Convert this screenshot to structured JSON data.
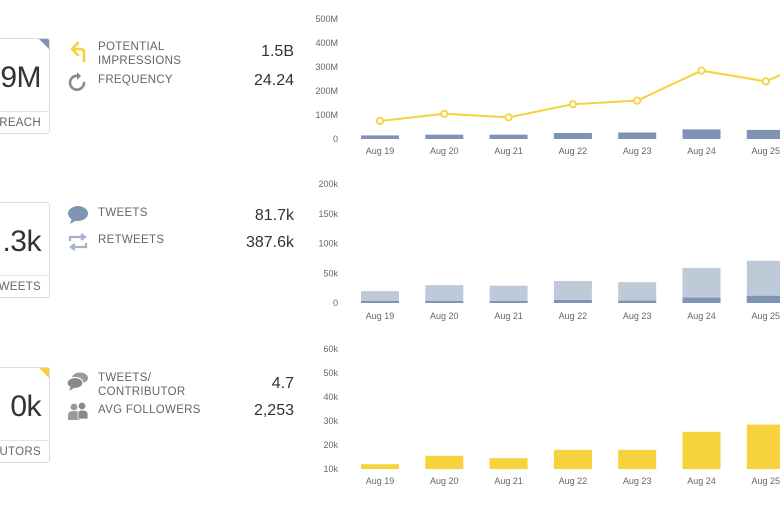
{
  "sections": [
    {
      "card": {
        "value": "9M",
        "caption": "REACH"
      },
      "metrics": [
        {
          "icon": "share-arrows-icon",
          "label": "POTENTIAL\nIMPRESSIONS",
          "value": "1.5B"
        },
        {
          "icon": "refresh-icon",
          "label": "FREQUENCY",
          "value": "24.24"
        }
      ]
    },
    {
      "card": {
        "value": ".3k",
        "caption": "WEETS"
      },
      "metrics": [
        {
          "icon": "speech-bubble-icon",
          "label": "TWEETS",
          "value": "81.7k"
        },
        {
          "icon": "retweet-icon",
          "label": "RETWEETS",
          "value": "387.6k"
        }
      ]
    },
    {
      "card": {
        "value": "0k",
        "caption": "UTORS"
      },
      "metrics": [
        {
          "icon": "chat-bubbles-icon",
          "label": "TWEETS/\nCONTRIBUTOR",
          "value": "4.7"
        },
        {
          "icon": "users-icon",
          "label": "AVG FOLLOWERS",
          "value": "2,253"
        }
      ]
    }
  ],
  "colors": {
    "accent_yellow": "#f6d23c",
    "bar_blue": "#7f93b4",
    "bar_light": "#bfcad9"
  },
  "chart_data": [
    {
      "type": "bar",
      "categories": [
        "Aug 19",
        "Aug 20",
        "Aug 21",
        "Aug 22",
        "Aug 23",
        "Aug 24",
        "Aug 25"
      ],
      "yticks": [
        "500M",
        "400M",
        "300M",
        "200M",
        "100M",
        "0"
      ],
      "ylim": [
        0,
        500
      ],
      "series": [
        {
          "type": "bar",
          "values": [
            15,
            18,
            18,
            25,
            27,
            40,
            38
          ]
        },
        {
          "type": "line",
          "values": [
            75,
            105,
            90,
            145,
            160,
            285,
            240
          ]
        }
      ],
      "line_end": 320
    },
    {
      "type": "bar",
      "categories": [
        "Aug 19",
        "Aug 20",
        "Aug 21",
        "Aug 22",
        "Aug 23",
        "Aug 24",
        "Aug 25"
      ],
      "yticks": [
        "200k",
        "150k",
        "100k",
        "50k",
        "0"
      ],
      "ylim": [
        0,
        200
      ],
      "series": [
        {
          "type": "bar",
          "values": [
            20,
            30,
            29,
            37,
            35,
            59,
            71
          ]
        },
        {
          "type": "bar",
          "values": [
            2,
            3,
            3,
            5,
            4,
            9,
            12
          ]
        }
      ]
    },
    {
      "type": "bar",
      "categories": [
        "Aug 19",
        "Aug 20",
        "Aug 21",
        "Aug 22",
        "Aug 23",
        "Aug 24",
        "Aug 25"
      ],
      "yticks": [
        "60k",
        "50k",
        "40k",
        "30k",
        "20k",
        "10k"
      ],
      "ylim": [
        10,
        60
      ],
      "series": [
        {
          "type": "bar",
          "values": [
            12,
            15.5,
            14.5,
            18,
            18,
            25.5,
            28.5
          ]
        }
      ]
    }
  ]
}
